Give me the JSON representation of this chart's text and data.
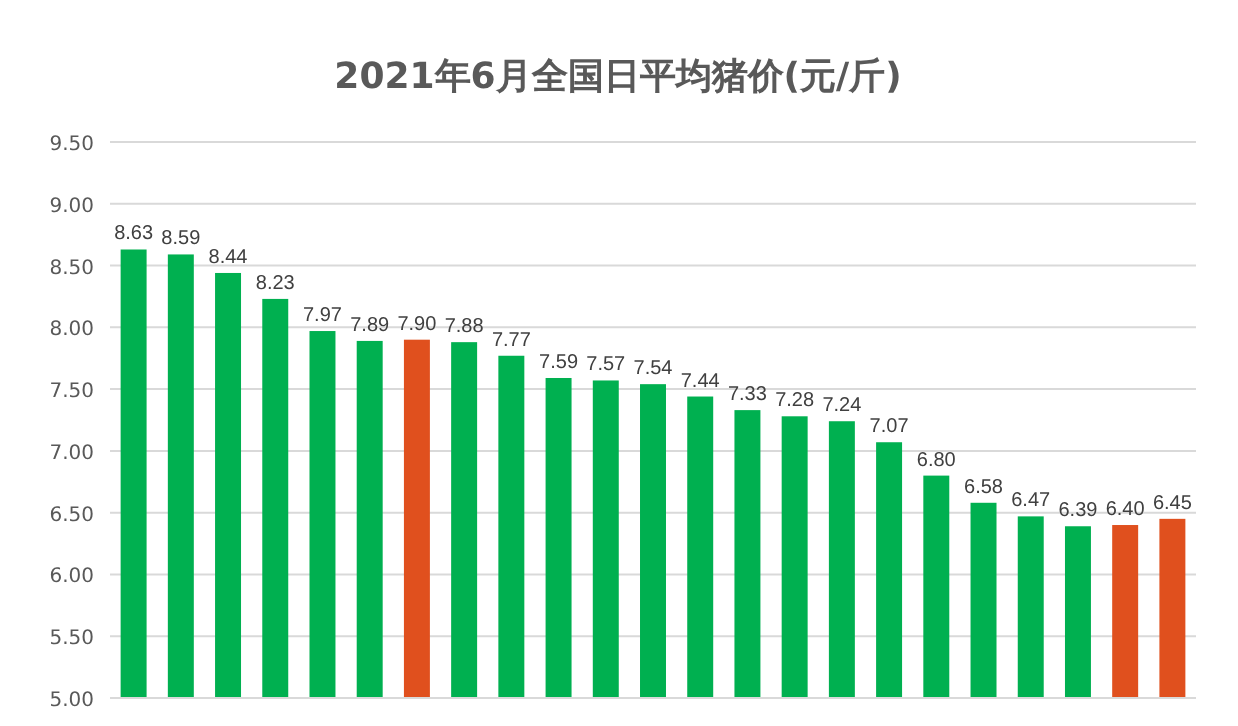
{
  "chart_data": {
    "type": "bar",
    "title": "2021年6月全国日平均猪价(元/斤)",
    "categories": [
      null,
      null,
      null,
      null,
      null,
      null,
      null,
      null,
      null,
      null,
      null,
      null,
      null,
      null,
      null,
      null,
      null,
      null,
      null,
      null,
      null,
      null,
      null
    ],
    "values": [
      8.63,
      8.59,
      8.44,
      8.23,
      7.97,
      7.89,
      7.9,
      7.88,
      7.77,
      7.59,
      7.57,
      7.54,
      7.44,
      7.33,
      7.28,
      7.24,
      7.07,
      6.8,
      6.58,
      6.47,
      6.39,
      6.4,
      6.45
    ],
    "value_labels": [
      "8.63",
      "8.59",
      "8.44",
      "8.23",
      "7.97",
      "7.89",
      "7.90",
      "7.88",
      "7.77",
      "7.59",
      "7.57",
      "7.54",
      "7.44",
      "7.33",
      "7.28",
      "7.24",
      "7.07",
      "6.80",
      "6.58",
      "6.47",
      "6.39",
      "6.40",
      "6.45"
    ],
    "colors": [
      "#00b050",
      "#00b050",
      "#00b050",
      "#00b050",
      "#00b050",
      "#00b050",
      "#e0501e",
      "#00b050",
      "#00b050",
      "#00b050",
      "#00b050",
      "#00b050",
      "#00b050",
      "#00b050",
      "#00b050",
      "#00b050",
      "#00b050",
      "#00b050",
      "#00b050",
      "#00b050",
      "#00b050",
      "#e0501e",
      "#e0501e"
    ],
    "ylim": [
      5,
      9.5
    ],
    "yticks": [
      {
        "value": 5,
        "label": "5.00"
      },
      {
        "value": 5.5,
        "label": "5.50"
      },
      {
        "value": 6,
        "label": "6.00"
      },
      {
        "value": 6.5,
        "label": "6.50"
      },
      {
        "value": 7,
        "label": "7.00"
      },
      {
        "value": 7.5,
        "label": "7.50"
      },
      {
        "value": 8,
        "label": "8.00"
      },
      {
        "value": 8.5,
        "label": "8.50"
      },
      {
        "value": 9,
        "label": "9.00"
      },
      {
        "value": 9.5,
        "label": "9.50"
      }
    ],
    "grid": "y"
  }
}
